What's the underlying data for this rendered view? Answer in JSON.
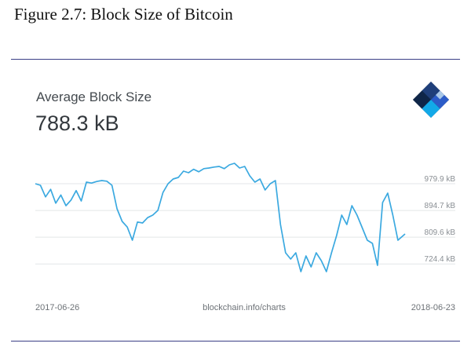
{
  "figure": {
    "title": "Figure 2.7: Block Size of Bitcoin"
  },
  "card": {
    "title": "Average Block Size",
    "value": "788.3 kB"
  },
  "brand": {
    "logo_icon": "blockchain-logo-icon"
  },
  "colors": {
    "line": "#3ba9e0",
    "grid": "#e3e6e8",
    "rule": "#3b3f86"
  },
  "chart_data": {
    "type": "line",
    "title": "Average Block Size",
    "ylim": [
      680,
      1050
    ],
    "grid": true,
    "y_ticks": [
      {
        "value": 979.9,
        "label": "979.9 kB"
      },
      {
        "value": 894.7,
        "label": "894.7 kB"
      },
      {
        "value": 809.6,
        "label": "809.6 kB"
      },
      {
        "value": 724.4,
        "label": "724.4 kB"
      }
    ],
    "x_labels": {
      "start": "2017-06-26",
      "middle": "blockchain.info/charts",
      "end": "2018-06-23"
    },
    "series": [
      {
        "x": [
          "2017-06-26",
          "2017-07-01",
          "2017-07-06",
          "2017-07-11",
          "2017-07-16",
          "2017-07-21",
          "2017-07-26",
          "2017-07-31",
          "2017-08-05",
          "2017-08-10",
          "2017-08-15",
          "2017-08-20",
          "2017-08-25",
          "2017-08-30",
          "2017-09-04",
          "2017-09-09",
          "2017-09-14",
          "2017-09-19",
          "2017-09-24",
          "2017-09-29",
          "2017-10-04",
          "2017-10-09",
          "2017-10-14",
          "2017-10-19",
          "2017-10-24",
          "2017-10-29",
          "2017-11-03",
          "2017-11-08",
          "2017-11-13",
          "2017-11-18",
          "2017-11-23",
          "2017-11-28",
          "2017-12-03",
          "2017-12-08",
          "2017-12-13",
          "2017-12-18",
          "2017-12-23",
          "2017-12-28",
          "2018-01-02",
          "2018-01-07",
          "2018-01-12",
          "2018-01-17",
          "2018-01-22",
          "2018-01-27",
          "2018-02-01",
          "2018-02-06",
          "2018-02-11",
          "2018-02-16",
          "2018-02-21",
          "2018-02-26",
          "2018-03-03",
          "2018-03-08",
          "2018-03-13",
          "2018-03-18",
          "2018-03-23",
          "2018-03-28",
          "2018-04-02",
          "2018-04-07",
          "2018-04-12",
          "2018-04-17",
          "2018-04-22",
          "2018-04-27",
          "2018-05-02",
          "2018-05-07",
          "2018-05-12",
          "2018-05-17",
          "2018-05-22",
          "2018-05-27",
          "2018-06-01",
          "2018-06-06",
          "2018-06-11",
          "2018-06-16",
          "2018-06-23"
        ],
        "values": [
          980,
          975,
          938,
          962,
          918,
          944,
          910,
          928,
          958,
          925,
          985,
          982,
          987,
          990,
          988,
          975,
          900,
          860,
          842,
          800,
          858,
          855,
          872,
          880,
          895,
          952,
          980,
          995,
          1000,
          1020,
          1015,
          1026,
          1018,
          1028,
          1030,
          1033,
          1035,
          1028,
          1040,
          1045,
          1030,
          1035,
          1005,
          985,
          995,
          960,
          980,
          990,
          850,
          760,
          740,
          760,
          700,
          750,
          715,
          760,
          735,
          700,
          760,
          815,
          880,
          850,
          910,
          880,
          840,
          800,
          790,
          720,
          920,
          950,
          880,
          800,
          820
        ]
      }
    ]
  }
}
